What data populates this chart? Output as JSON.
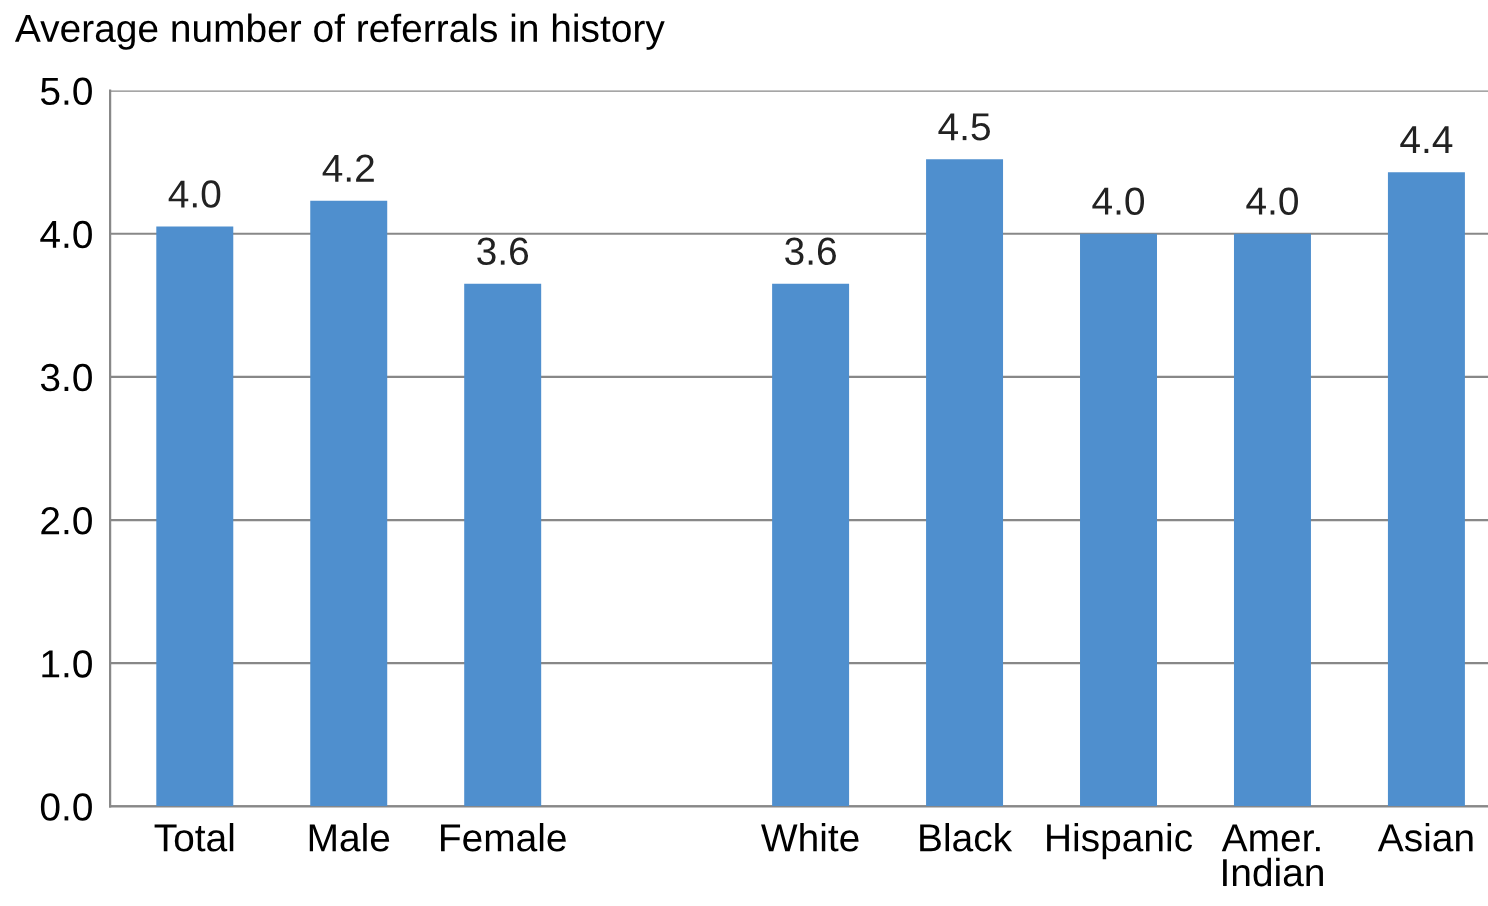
{
  "chart_data": {
    "type": "bar",
    "ylabel": "Average number of referrals in history",
    "categories": [
      "Total",
      "Male",
      "Female",
      null,
      "White",
      "Black",
      "Hispanic",
      "Amer.\nIndian",
      "Asian"
    ],
    "values": [
      4.05,
      4.23,
      3.65,
      null,
      3.65,
      4.52,
      4.0,
      4.0,
      4.43
    ],
    "value_labels": [
      "4.0",
      "4.2",
      "3.6",
      null,
      "3.6",
      "4.5",
      "4.0",
      "4.0",
      "4.4"
    ],
    "color": "#4f8fce",
    "ylim": [
      0,
      5
    ],
    "yticks": [
      {
        "value": 0,
        "label": "0.0"
      },
      {
        "value": 1,
        "label": "1.0"
      },
      {
        "value": 2,
        "label": "2.0"
      },
      {
        "value": 3,
        "label": "3.0"
      },
      {
        "value": 4,
        "label": "4.0"
      },
      {
        "value": 5,
        "label": "5.0"
      }
    ],
    "grid": "y"
  }
}
